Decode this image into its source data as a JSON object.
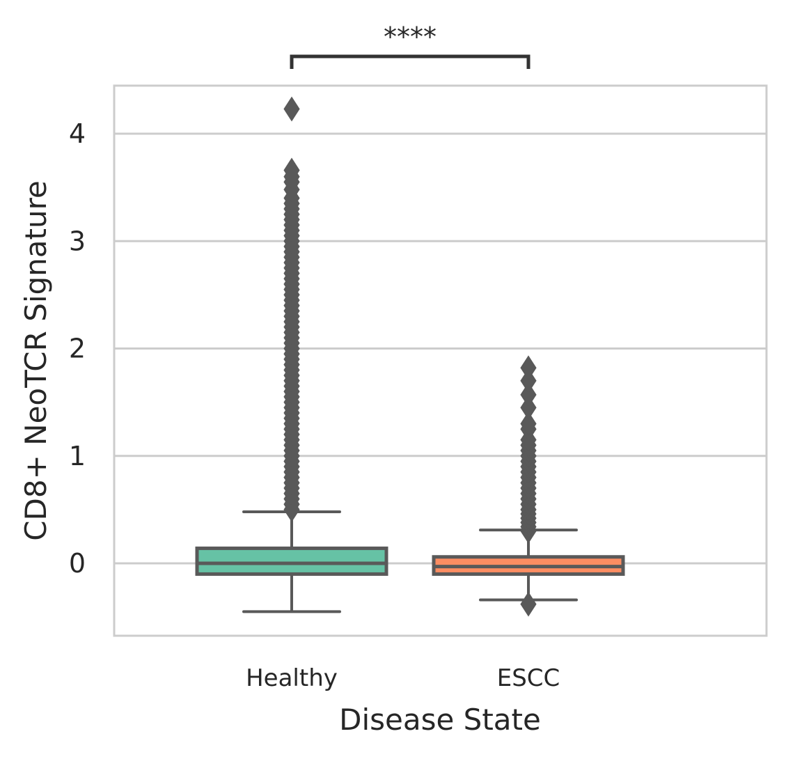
{
  "chart_data": {
    "type": "box",
    "xlabel": "Disease State",
    "ylabel": "CD8+ NeoTCR Signature",
    "categories": [
      "Healthy",
      "ESCC"
    ],
    "ylim": [
      -0.68,
      4.45
    ],
    "yticks": [
      0,
      1,
      2,
      3,
      4
    ],
    "grid": true,
    "colors": {
      "Healthy": "#66c2a5",
      "ESCC": "#fc8d62",
      "edge": "#595959",
      "grid": "#cccccc"
    },
    "boxes": [
      {
        "name": "Healthy",
        "q1": -0.1,
        "median": 0.0,
        "q3": 0.14,
        "whisker_low": -0.45,
        "whisker_high": 0.48,
        "outliers_low": [],
        "outliers_high": [
          0.5,
          0.55,
          0.6,
          0.65,
          0.7,
          0.75,
          0.8,
          0.85,
          0.9,
          0.95,
          1.0,
          1.05,
          1.1,
          1.15,
          1.2,
          1.25,
          1.3,
          1.35,
          1.4,
          1.45,
          1.5,
          1.55,
          1.6,
          1.65,
          1.7,
          1.75,
          1.8,
          1.85,
          1.9,
          1.95,
          2.0,
          2.05,
          2.1,
          2.15,
          2.2,
          2.25,
          2.3,
          2.35,
          2.4,
          2.45,
          2.5,
          2.55,
          2.6,
          2.65,
          2.7,
          2.75,
          2.8,
          2.85,
          2.9,
          2.95,
          3.0,
          3.05,
          3.1,
          3.15,
          3.2,
          3.25,
          3.3,
          3.35,
          3.4,
          3.48,
          3.55,
          3.6,
          3.66,
          4.23
        ]
      },
      {
        "name": "ESCC",
        "q1": -0.1,
        "median": -0.03,
        "q3": 0.06,
        "whisker_low": -0.34,
        "whisker_high": 0.31,
        "outliers_low": [
          -0.38
        ],
        "outliers_high": [
          0.3,
          0.34,
          0.38,
          0.42,
          0.46,
          0.5,
          0.55,
          0.6,
          0.65,
          0.7,
          0.75,
          0.8,
          0.85,
          0.9,
          0.95,
          1.0,
          1.05,
          1.1,
          1.15,
          1.25,
          1.3,
          1.45,
          1.57,
          1.7,
          1.82
        ]
      }
    ],
    "annotation": {
      "label": "****",
      "between": [
        "Healthy",
        "ESCC"
      ]
    }
  }
}
